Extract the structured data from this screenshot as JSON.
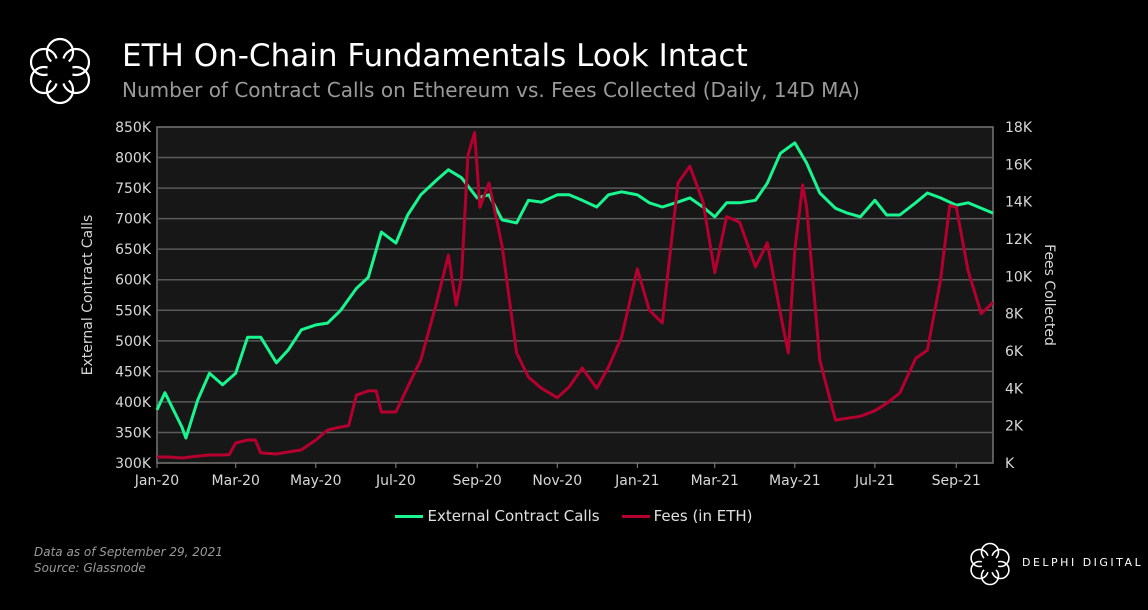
{
  "header": {
    "title": "ETH On-Chain Fundamentals Look Intact",
    "subtitle": "Number of Contract Calls on Ethereum vs. Fees Collected (Daily, 14D MA)"
  },
  "footer": {
    "note": "Data as of September 29, 2021",
    "source": "Source:  Glassnode",
    "brand": "DELPHI DIGITAL"
  },
  "chart_data": {
    "type": "line",
    "title": "ETH On-Chain Fundamentals Look Intact",
    "ylabel": "External Contract Calls",
    "y2label": "Fees Collected",
    "ylim": [
      300000,
      850000
    ],
    "y2lim": [
      0,
      18000
    ],
    "yticks": [
      "300K",
      "350K",
      "400K",
      "450K",
      "500K",
      "550K",
      "600K",
      "650K",
      "700K",
      "750K",
      "800K",
      "850K"
    ],
    "y2ticks": [
      "K",
      "2K",
      "4K",
      "6K",
      "8K",
      "10K",
      "12K",
      "14K",
      "16K",
      "18K"
    ],
    "xticks": [
      [
        "2020-01-01",
        "Jan-20"
      ],
      [
        "2020-03-01",
        "Mar-20"
      ],
      [
        "2020-05-01",
        "May-20"
      ],
      [
        "2020-07-01",
        "Jul-20"
      ],
      [
        "2020-09-01",
        "Sep-20"
      ],
      [
        "2020-11-01",
        "Nov-20"
      ],
      [
        "2021-01-01",
        "Jan-21"
      ],
      [
        "2021-03-01",
        "Mar-21"
      ],
      [
        "2021-05-01",
        "May-21"
      ],
      [
        "2021-07-01",
        "Jul-21"
      ],
      [
        "2021-09-01",
        "Sep-21"
      ]
    ],
    "xlim": [
      "2020-01-01",
      "2021-09-29"
    ],
    "grid": true,
    "legend_position": "bottom",
    "series": [
      {
        "name": "External Contract Calls",
        "axis": "left",
        "color": "#19f58f",
        "points": [
          [
            "2020-01-01",
            387000
          ],
          [
            "2020-01-07",
            415000
          ],
          [
            "2020-01-20",
            359000
          ],
          [
            "2020-01-23",
            341000
          ],
          [
            "2020-02-01",
            403000
          ],
          [
            "2020-02-10",
            447000
          ],
          [
            "2020-02-20",
            428000
          ],
          [
            "2020-03-01",
            447000
          ],
          [
            "2020-03-10",
            506000
          ],
          [
            "2020-03-20",
            506000
          ],
          [
            "2020-04-01",
            464000
          ],
          [
            "2020-04-10",
            485000
          ],
          [
            "2020-04-20",
            518000
          ],
          [
            "2020-05-01",
            526000
          ],
          [
            "2020-05-10",
            529000
          ],
          [
            "2020-05-20",
            550000
          ],
          [
            "2020-06-01",
            586000
          ],
          [
            "2020-06-10",
            604000
          ],
          [
            "2020-06-20",
            678000
          ],
          [
            "2020-07-01",
            660000
          ],
          [
            "2020-07-10",
            706000
          ],
          [
            "2020-07-20",
            739000
          ],
          [
            "2020-08-01",
            763000
          ],
          [
            "2020-08-10",
            780000
          ],
          [
            "2020-08-20",
            767000
          ],
          [
            "2020-09-01",
            734000
          ],
          [
            "2020-09-10",
            739000
          ],
          [
            "2020-09-20",
            698000
          ],
          [
            "2020-10-01",
            693000
          ],
          [
            "2020-10-10",
            730000
          ],
          [
            "2020-10-20",
            727000
          ],
          [
            "2020-11-01",
            739000
          ],
          [
            "2020-11-10",
            739000
          ],
          [
            "2020-11-20",
            730000
          ],
          [
            "2020-12-01",
            719000
          ],
          [
            "2020-12-10",
            739000
          ],
          [
            "2020-12-20",
            744000
          ],
          [
            "2021-01-01",
            739000
          ],
          [
            "2021-01-10",
            726000
          ],
          [
            "2021-01-20",
            719000
          ],
          [
            "2021-02-01",
            727000
          ],
          [
            "2021-02-10",
            734000
          ],
          [
            "2021-02-20",
            719000
          ],
          [
            "2021-03-01",
            703000
          ],
          [
            "2021-03-10",
            726000
          ],
          [
            "2021-03-20",
            726000
          ],
          [
            "2021-04-01",
            730000
          ],
          [
            "2021-04-10",
            758000
          ],
          [
            "2021-04-20",
            807000
          ],
          [
            "2021-05-01",
            824000
          ],
          [
            "2021-05-10",
            791000
          ],
          [
            "2021-05-20",
            742000
          ],
          [
            "2021-06-01",
            717000
          ],
          [
            "2021-06-10",
            709000
          ],
          [
            "2021-06-20",
            703000
          ],
          [
            "2021-07-01",
            730000
          ],
          [
            "2021-07-10",
            706000
          ],
          [
            "2021-07-20",
            706000
          ],
          [
            "2021-08-01",
            726000
          ],
          [
            "2021-08-10",
            742000
          ],
          [
            "2021-08-20",
            734000
          ],
          [
            "2021-09-01",
            722000
          ],
          [
            "2021-09-10",
            726000
          ],
          [
            "2021-09-29",
            709000
          ]
        ]
      },
      {
        "name": "Fees (in ETH)",
        "axis": "right",
        "color": "#b5002f",
        "points": [
          [
            "2020-01-01",
            320
          ],
          [
            "2020-01-10",
            320
          ],
          [
            "2020-01-20",
            270
          ],
          [
            "2020-02-01",
            370
          ],
          [
            "2020-02-10",
            430
          ],
          [
            "2020-02-20",
            430
          ],
          [
            "2020-02-25",
            450
          ],
          [
            "2020-03-01",
            1070
          ],
          [
            "2020-03-10",
            1230
          ],
          [
            "2020-03-16",
            1230
          ],
          [
            "2020-03-20",
            540
          ],
          [
            "2020-04-01",
            480
          ],
          [
            "2020-04-10",
            590
          ],
          [
            "2020-04-20",
            700
          ],
          [
            "2020-05-01",
            1230
          ],
          [
            "2020-05-10",
            1770
          ],
          [
            "2020-05-20",
            1930
          ],
          [
            "2020-05-26",
            2000
          ],
          [
            "2020-06-01",
            3640
          ],
          [
            "2020-06-10",
            3860
          ],
          [
            "2020-06-16",
            3860
          ],
          [
            "2020-06-20",
            2730
          ],
          [
            "2020-07-01",
            2730
          ],
          [
            "2020-07-10",
            4070
          ],
          [
            "2020-07-20",
            5520
          ],
          [
            "2020-08-01",
            8570
          ],
          [
            "2020-08-10",
            11140
          ],
          [
            "2020-08-16",
            8460
          ],
          [
            "2020-08-20",
            9960
          ],
          [
            "2020-08-25",
            16500
          ],
          [
            "2020-08-30",
            17700
          ],
          [
            "2020-09-03",
            13700
          ],
          [
            "2020-09-10",
            15000
          ],
          [
            "2020-09-20",
            11600
          ],
          [
            "2020-10-01",
            5900
          ],
          [
            "2020-10-10",
            4600
          ],
          [
            "2020-10-20",
            4000
          ],
          [
            "2020-11-01",
            3500
          ],
          [
            "2020-11-10",
            4070
          ],
          [
            "2020-11-20",
            5090
          ],
          [
            "2020-12-01",
            4000
          ],
          [
            "2020-12-10",
            5140
          ],
          [
            "2020-12-20",
            6750
          ],
          [
            "2021-01-01",
            10400
          ],
          [
            "2021-01-10",
            8200
          ],
          [
            "2021-01-20",
            7500
          ],
          [
            "2021-02-01",
            15000
          ],
          [
            "2021-02-10",
            15900
          ],
          [
            "2021-02-20",
            14000
          ],
          [
            "2021-03-01",
            10200
          ],
          [
            "2021-03-10",
            13200
          ],
          [
            "2021-03-20",
            12900
          ],
          [
            "2021-04-01",
            10500
          ],
          [
            "2021-04-10",
            11800
          ],
          [
            "2021-04-20",
            8000
          ],
          [
            "2021-04-26",
            5900
          ],
          [
            "2021-05-01",
            11400
          ],
          [
            "2021-05-07",
            14900
          ],
          [
            "2021-05-10",
            13700
          ],
          [
            "2021-05-20",
            5500
          ],
          [
            "2021-06-01",
            2300
          ],
          [
            "2021-06-10",
            2400
          ],
          [
            "2021-06-20",
            2500
          ],
          [
            "2021-07-01",
            2800
          ],
          [
            "2021-07-10",
            3200
          ],
          [
            "2021-07-20",
            3750
          ],
          [
            "2021-08-01",
            5600
          ],
          [
            "2021-08-10",
            6050
          ],
          [
            "2021-08-20",
            9800
          ],
          [
            "2021-08-27",
            13800
          ],
          [
            "2021-09-01",
            13700
          ],
          [
            "2021-09-10",
            10300
          ],
          [
            "2021-09-20",
            8000
          ],
          [
            "2021-09-29",
            8600
          ]
        ]
      }
    ]
  },
  "colors": {
    "calls": "#19f58f",
    "fees": "#b5002f",
    "plot_bg": "#171717",
    "grid": "#5a5a5a"
  },
  "icons": {
    "logo": "delphi-flower-logo"
  }
}
